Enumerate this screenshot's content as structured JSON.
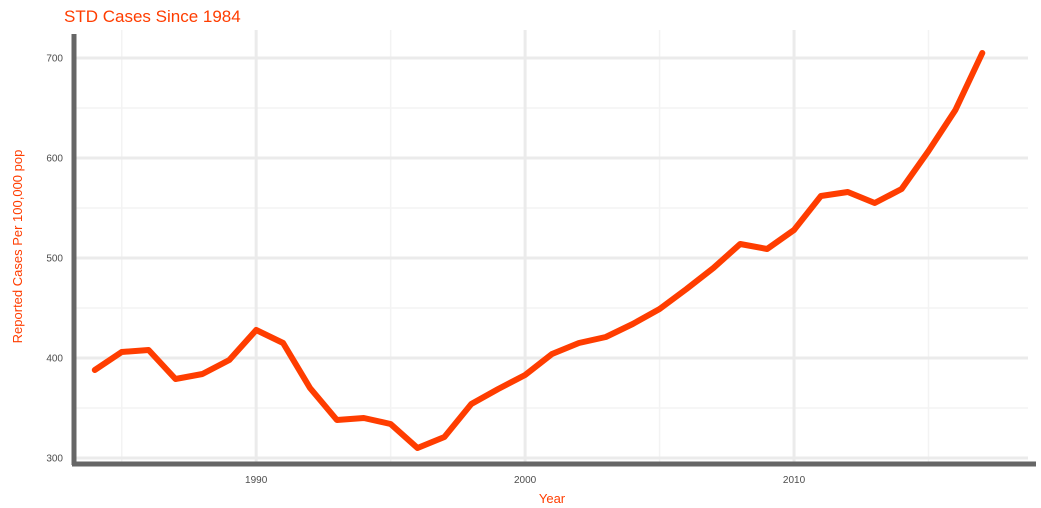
{
  "chart_data": {
    "type": "line",
    "title": "STD Cases Since 1984",
    "xlabel": "Year",
    "ylabel": "Reported Cases Per 100,000 pop",
    "x_ticks": [
      1990,
      2000,
      2010
    ],
    "y_ticks": [
      300,
      400,
      500,
      600,
      700
    ],
    "xlim": [
      1983.3,
      2018.7
    ],
    "ylim": [
      295,
      728
    ],
    "grid": true,
    "legend": "none",
    "colors": {
      "title": "#ff3d00",
      "axis_titles": "#ff3d00",
      "line": "#ff3d00",
      "grid": "#ebebeb",
      "axis": "#666666",
      "tick_labels": "#4d4d4d"
    },
    "x": [
      1984,
      1985,
      1986,
      1987,
      1988,
      1989,
      1990,
      1991,
      1992,
      1993,
      1994,
      1995,
      1996,
      1997,
      1998,
      1999,
      2000,
      2001,
      2002,
      2003,
      2004,
      2005,
      2006,
      2007,
      2008,
      2009,
      2010,
      2011,
      2012,
      2013,
      2014,
      2015,
      2016,
      2017
    ],
    "series": [
      {
        "values": [
          388,
          406,
          408,
          379,
          384,
          398,
          428,
          415,
          370,
          338,
          340,
          334,
          310,
          321,
          354,
          369,
          383,
          404,
          415,
          421,
          434,
          449,
          469,
          490,
          514,
          509,
          528,
          562,
          566,
          555,
          569,
          607,
          648,
          705
        ]
      }
    ]
  }
}
